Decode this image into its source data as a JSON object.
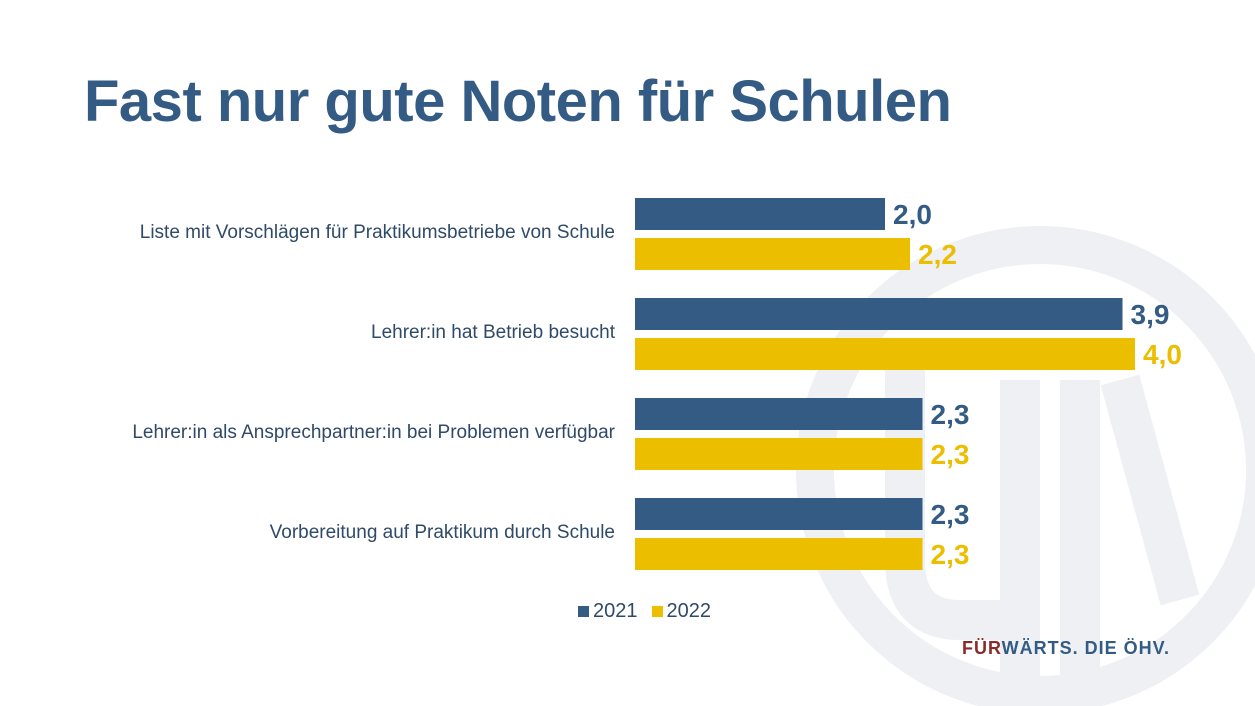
{
  "slide": {
    "title": "Fast nur gute Noten für Schulen",
    "footer_accent": "FÜR",
    "footer_rest": "WÄRTS. DIE ÖHV."
  },
  "colors": {
    "series_2021": "#335b84",
    "series_2022": "#ebbe00",
    "title": "#335b84",
    "footer_accent": "#8b2a2a",
    "watermark": "#eef0f4"
  },
  "chart_data": {
    "type": "bar",
    "orientation": "horizontal",
    "categories": [
      "Liste mit Vorschlägen für Praktikumsbetriebe von  Schule",
      "Lehrer:in hat Betrieb besucht",
      "Lehrer:in als Ansprechpartner:in bei Problemen verfügbar",
      "Vorbereitung auf Praktikum durch Schule"
    ],
    "series": [
      {
        "name": "2021",
        "values": [
          2.0,
          3.9,
          2.3,
          2.3
        ],
        "labels": [
          "2,0",
          "3,9",
          "2,3",
          "2,3"
        ]
      },
      {
        "name": "2022",
        "values": [
          2.2,
          4.0,
          2.3,
          2.3
        ],
        "labels": [
          "2,2",
          "4,0",
          "2,3",
          "2,3"
        ]
      }
    ],
    "xlim": [
      0,
      4.5
    ],
    "grid": false,
    "legend_position": "bottom"
  }
}
